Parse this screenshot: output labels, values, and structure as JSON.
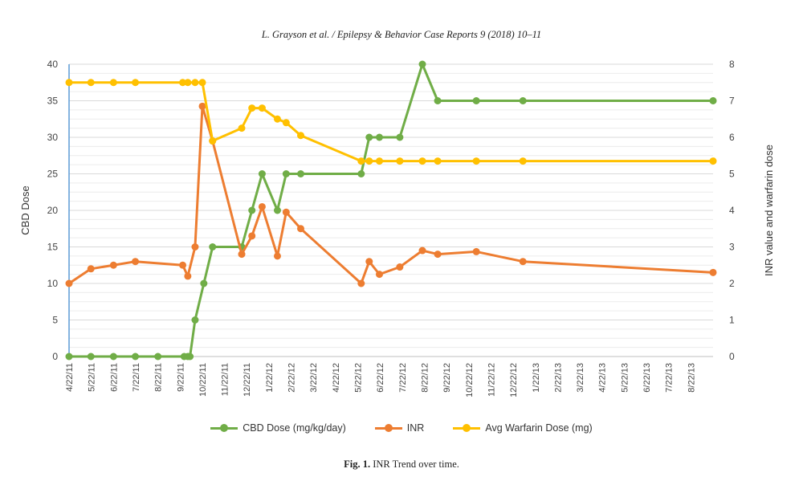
{
  "header": "L. Grayson et al. / Epilepsy & Behavior Case Reports 9 (2018) 10–11",
  "caption": {
    "label": "Fig. 1.",
    "text": "INR Trend over time."
  },
  "chart_data": {
    "type": "line",
    "xlabel": "",
    "ylabel": "CBD Dose",
    "y2label": "INR value and warfarin dose",
    "ylim": [
      0,
      40
    ],
    "y2lim": [
      0,
      8
    ],
    "yticks": [
      0,
      5,
      10,
      15,
      20,
      25,
      30,
      35,
      40
    ],
    "y2ticks": [
      0,
      1,
      2,
      3,
      4,
      5,
      6,
      7,
      8
    ],
    "grid": true,
    "legend_position": "bottom",
    "x_tick_labels": [
      "4/22/11",
      "5/22/11",
      "6/22/11",
      "7/22/11",
      "8/22/11",
      "9/22/11",
      "10/22/11",
      "11/22/11",
      "12/22/11",
      "1/22/12",
      "2/22/12",
      "3/22/12",
      "4/22/12",
      "5/22/12",
      "6/22/12",
      "7/22/12",
      "8/22/12",
      "9/22/12",
      "10/22/12",
      "11/22/12",
      "12/22/12",
      "1/22/13",
      "2/22/13",
      "3/22/13",
      "4/22/13",
      "5/22/13",
      "6/22/13",
      "7/22/13",
      "8/22/13"
    ],
    "x_range": [
      "2011-04-22",
      "2013-09-22"
    ],
    "series": [
      {
        "name": "CBD Dose (mg/kg/day)",
        "axis": "left",
        "color": "#70ad47",
        "points": [
          [
            "2011-04-22",
            0
          ],
          [
            "2011-05-22",
            0
          ],
          [
            "2011-06-22",
            0
          ],
          [
            "2011-07-22",
            0
          ],
          [
            "2011-08-22",
            0
          ],
          [
            "2011-09-27",
            0
          ],
          [
            "2011-10-02",
            0
          ],
          [
            "2011-10-05",
            0
          ],
          [
            "2011-10-12",
            5
          ],
          [
            "2011-10-24",
            10
          ],
          [
            "2011-11-05",
            15
          ],
          [
            "2011-12-15",
            15
          ],
          [
            "2011-12-29",
            20
          ],
          [
            "2012-01-12",
            25
          ],
          [
            "2012-02-02",
            20
          ],
          [
            "2012-02-14",
            25
          ],
          [
            "2012-03-05",
            25
          ],
          [
            "2012-05-27",
            25
          ],
          [
            "2012-06-07",
            30
          ],
          [
            "2012-06-21",
            30
          ],
          [
            "2012-07-19",
            30
          ],
          [
            "2012-08-19",
            40
          ],
          [
            "2012-09-09",
            35
          ],
          [
            "2012-11-01",
            35
          ],
          [
            "2013-01-04",
            35
          ],
          [
            "2013-09-22",
            35
          ]
        ]
      },
      {
        "name": "INR",
        "axis": "right",
        "color": "#ed7d31",
        "points": [
          [
            "2011-04-22",
            2.0
          ],
          [
            "2011-05-22",
            2.4
          ],
          [
            "2011-06-22",
            2.5
          ],
          [
            "2011-07-22",
            2.6
          ],
          [
            "2011-09-25",
            2.5
          ],
          [
            "2011-10-02",
            2.2
          ],
          [
            "2011-10-12",
            3.0
          ],
          [
            "2011-10-22",
            6.85
          ],
          [
            "2011-11-05",
            5.9
          ],
          [
            "2011-12-15",
            2.8
          ],
          [
            "2011-12-29",
            3.3
          ],
          [
            "2012-01-12",
            4.1
          ],
          [
            "2012-02-02",
            2.75
          ],
          [
            "2012-02-14",
            3.95
          ],
          [
            "2012-03-05",
            3.5
          ],
          [
            "2012-05-27",
            2.0
          ],
          [
            "2012-06-07",
            2.6
          ],
          [
            "2012-06-21",
            2.25
          ],
          [
            "2012-07-19",
            2.45
          ],
          [
            "2012-08-19",
            2.9
          ],
          [
            "2012-09-09",
            2.8
          ],
          [
            "2012-11-01",
            2.87
          ],
          [
            "2013-01-04",
            2.6
          ],
          [
            "2013-09-22",
            2.3
          ]
        ]
      },
      {
        "name": "Avg Warfarin Dose (mg)",
        "axis": "right",
        "color": "#ffc000",
        "points": [
          [
            "2011-04-22",
            7.5
          ],
          [
            "2011-05-22",
            7.5
          ],
          [
            "2011-06-22",
            7.5
          ],
          [
            "2011-07-22",
            7.5
          ],
          [
            "2011-09-25",
            7.5
          ],
          [
            "2011-10-02",
            7.5
          ],
          [
            "2011-10-12",
            7.5
          ],
          [
            "2011-10-22",
            7.5
          ],
          [
            "2011-11-05",
            5.9
          ],
          [
            "2011-12-15",
            6.25
          ],
          [
            "2011-12-29",
            6.8
          ],
          [
            "2012-01-12",
            6.8
          ],
          [
            "2012-02-02",
            6.5
          ],
          [
            "2012-02-14",
            6.4
          ],
          [
            "2012-03-05",
            6.05
          ],
          [
            "2012-05-27",
            5.35
          ],
          [
            "2012-06-07",
            5.35
          ],
          [
            "2012-06-21",
            5.35
          ],
          [
            "2012-07-19",
            5.35
          ],
          [
            "2012-08-19",
            5.35
          ],
          [
            "2012-09-09",
            5.35
          ],
          [
            "2012-11-01",
            5.35
          ],
          [
            "2013-01-04",
            5.35
          ],
          [
            "2013-09-22",
            5.35
          ]
        ]
      }
    ]
  }
}
